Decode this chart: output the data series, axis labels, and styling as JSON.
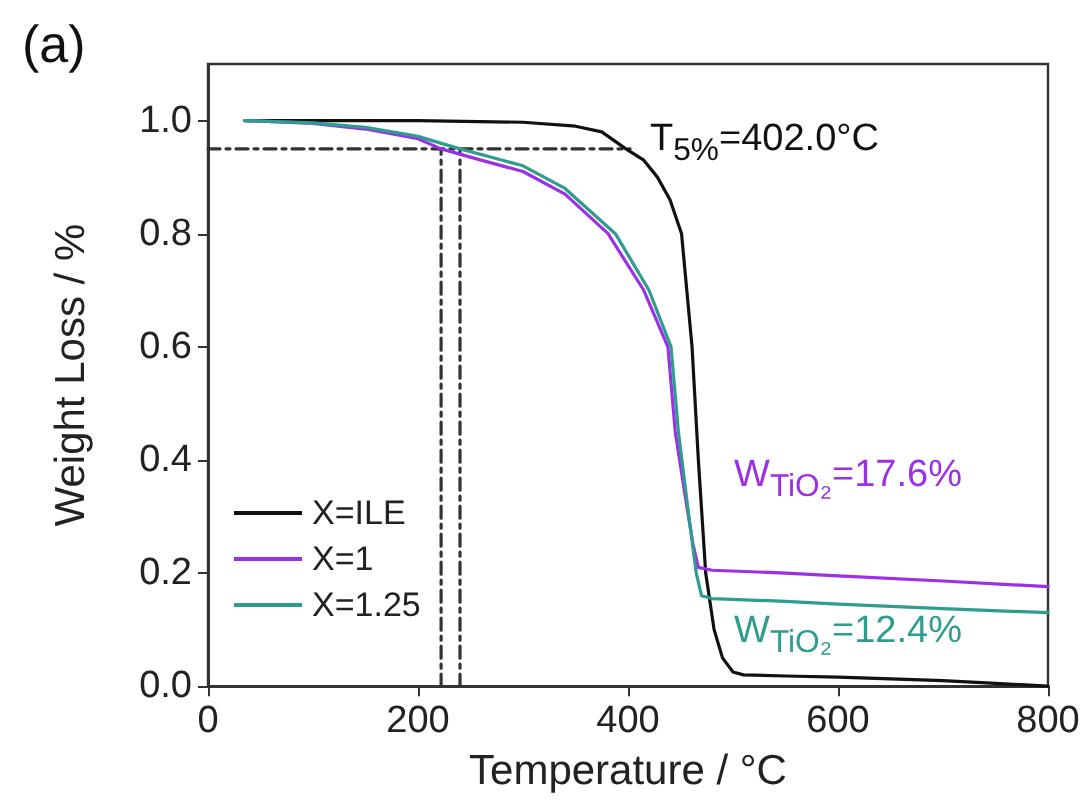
{
  "chart_data": {
    "type": "line",
    "title": "(a)",
    "xlabel": "Temperature / °C",
    "ylabel": "Weight Loss / %",
    "xlim": [
      0,
      800
    ],
    "xticks": [
      0,
      200,
      400,
      600,
      800
    ],
    "ylim": [
      0,
      1.1
    ],
    "yticks": [
      {
        "value": 0,
        "label": "0.0"
      },
      {
        "value": 0.2,
        "label": "0.2"
      },
      {
        "value": 0.4,
        "label": "0.4"
      },
      {
        "value": 0.6,
        "label": "0.6"
      },
      {
        "value": 0.8,
        "label": "0.8"
      },
      {
        "value": 1,
        "label": "1.0"
      }
    ],
    "legend": "bottom left",
    "grid": false,
    "marker": "none",
    "line_style": "solid",
    "series": [
      {
        "name": "X=ILE",
        "color": "#111111",
        "x": [
          35,
          100,
          200,
          300,
          350,
          375,
          398,
          415,
          428,
          440,
          451,
          461,
          467,
          474,
          482,
          490,
          500,
          510,
          550,
          600,
          650,
          700,
          750,
          800
        ],
        "values": [
          1.0,
          1.0,
          1.0,
          0.997,
          0.99,
          0.98,
          0.95,
          0.93,
          0.9,
          0.86,
          0.8,
          0.6,
          0.4,
          0.2,
          0.1,
          0.05,
          0.025,
          0.02,
          0.018,
          0.016,
          0.013,
          0.01,
          0.005,
          0.0
        ]
      },
      {
        "name": "X=1",
        "color": "#9b30e8",
        "x": [
          35,
          100,
          150,
          200,
          222,
          260,
          300,
          340,
          381,
          415,
          438,
          445,
          455,
          462,
          467,
          480,
          550,
          600,
          700,
          800
        ],
        "values": [
          1.0,
          0.995,
          0.985,
          0.968,
          0.95,
          0.93,
          0.91,
          0.87,
          0.8,
          0.7,
          0.6,
          0.45,
          0.33,
          0.25,
          0.21,
          0.205,
          0.2,
          0.195,
          0.186,
          0.176
        ]
      },
      {
        "name": "X=1.25",
        "color": "#2e9c8e",
        "x": [
          35,
          100,
          150,
          200,
          240,
          270,
          300,
          340,
          388,
          420,
          441,
          448,
          458,
          465,
          470,
          480,
          550,
          600,
          700,
          800
        ],
        "values": [
          1.0,
          0.996,
          0.988,
          0.972,
          0.95,
          0.935,
          0.92,
          0.88,
          0.8,
          0.7,
          0.6,
          0.45,
          0.3,
          0.2,
          0.16,
          0.155,
          0.15,
          0.145,
          0.137,
          0.13
        ]
      },
      {
        "color": "#333333",
        "line_style": "dashed",
        "x": [
          0,
          402
        ],
        "values": [
          0.95,
          0.95
        ]
      },
      {
        "color": "#333333",
        "line_style": "dashed",
        "x": [
          222,
          222
        ],
        "values": [
          0,
          0.95
        ]
      },
      {
        "color": "#333333",
        "line_style": "dashed",
        "x": [
          240,
          240
        ],
        "values": [
          0,
          0.95
        ]
      }
    ],
    "annotations": [
      "T$_{5%}$=402.0°C",
      "W$_{TiO₂}$=17.6%",
      "W$_{TiO₂}$=12.4%"
    ]
  }
}
